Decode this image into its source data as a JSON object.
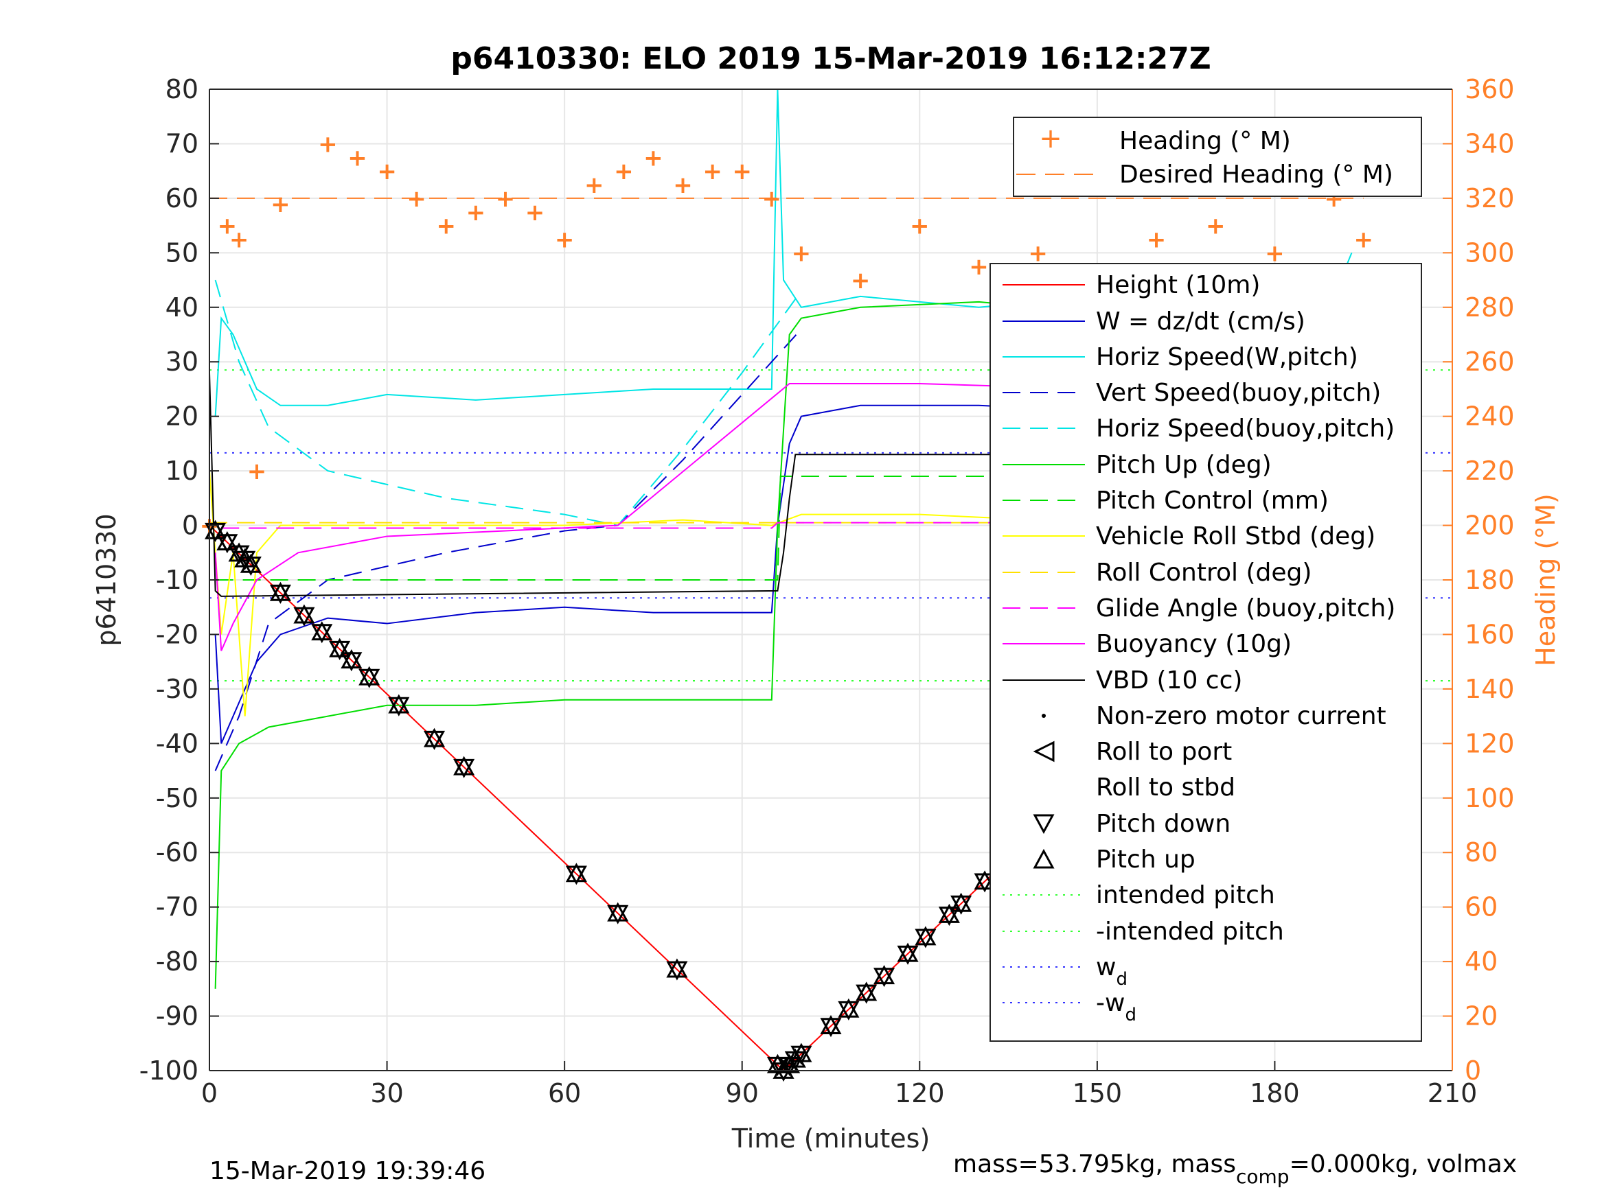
{
  "footer": {
    "timestamp": "15-Mar-2019 19:39:46",
    "mass_info_prefix": "mass=53.795kg, mass",
    "mass_info_sub": "comp",
    "mass_info_suffix": "=0.000kg, volmax"
  },
  "colors": {
    "height": "#ff0000",
    "w": "#0000cc",
    "horiz_w": "#00e5e5",
    "vert_buoy": "#0000cc",
    "horiz_buoy": "#00e5e5",
    "pitch_up": "#00dd00",
    "pitch_control": "#00dd00",
    "roll": "#ffff00",
    "roll_control": "#ffe000",
    "glide": "#ff00ff",
    "buoyancy": "#ff00ff",
    "vbd": "#000000",
    "heading": "#ff7f27",
    "intended": "#33ff33",
    "wd": "#3333ff"
  },
  "chart_data": {
    "type": "line",
    "title": "p6410330: ELO 2019 15-Mar-2019 16:12:27Z",
    "xlabel": "Time (minutes)",
    "ylabel": "p6410330",
    "ylabel_right": "Heading (°M)",
    "xlim": [
      0,
      210
    ],
    "ylim": [
      -100,
      80
    ],
    "ylim_right": [
      0,
      360
    ],
    "x_ticks": [
      0,
      30,
      60,
      90,
      120,
      150,
      180,
      210
    ],
    "y_ticks": [
      -100,
      -90,
      -80,
      -70,
      -60,
      -50,
      -40,
      -30,
      -20,
      -10,
      0,
      10,
      20,
      30,
      40,
      50,
      60,
      70,
      80
    ],
    "y_ticks_right": [
      0,
      20,
      40,
      60,
      80,
      100,
      120,
      140,
      160,
      180,
      200,
      220,
      240,
      260,
      280,
      300,
      320,
      340,
      360
    ],
    "grid": true,
    "legend_top": [
      "Heading (° M)",
      "Desired Heading (° M)"
    ],
    "legend_main": [
      "Height (10m)",
      "W = dz/dt (cm/s)",
      "Horiz Speed(W,pitch)",
      "Vert Speed(buoy,pitch)",
      "Horiz Speed(buoy,pitch)",
      "Pitch Up (deg)",
      "Pitch Control (mm)",
      "Vehicle Roll Stbd (deg)",
      "Roll Control (deg)",
      "Glide Angle (buoy,pitch)",
      "Buoyancy (10g)",
      "VBD (10 cc)",
      "Non-zero motor current",
      "Roll to port",
      "Roll to stbd",
      "Pitch down",
      "Pitch up",
      "intended pitch",
      "-intended pitch",
      "w",
      "-w"
    ],
    "legend_wd_sub": "d",
    "series": [
      {
        "key": "height",
        "x": [
          0,
          97,
          195
        ],
        "y": [
          0,
          -100,
          0
        ]
      },
      {
        "key": "w",
        "x": [
          1,
          2,
          4,
          8,
          12,
          20,
          30,
          45,
          60,
          75,
          95,
          96,
          98,
          100,
          110,
          130,
          150,
          170,
          190,
          193
        ],
        "y": [
          -20,
          -40,
          -35,
          -25,
          -20,
          -17,
          -18,
          -16,
          -15,
          -16,
          -16,
          0,
          15,
          20,
          22,
          22,
          21,
          18,
          13,
          25
        ]
      },
      {
        "key": "horiz_w",
        "x": [
          1,
          2,
          4,
          8,
          12,
          20,
          30,
          45,
          60,
          75,
          95,
          96,
          97,
          100,
          110,
          130,
          150,
          170,
          190,
          193
        ],
        "y": [
          20,
          38,
          35,
          25,
          22,
          22,
          24,
          23,
          24,
          25,
          25,
          80,
          45,
          40,
          42,
          40,
          42,
          38,
          42,
          50
        ]
      },
      {
        "key": "vert_buoy",
        "x": [
          1,
          5,
          10,
          20,
          40,
          60,
          69,
          80,
          90,
          100
        ],
        "y": [
          -45,
          -35,
          -18,
          -10,
          -5,
          -1,
          0,
          12,
          24,
          36
        ]
      },
      {
        "key": "horiz_buoy",
        "x": [
          1,
          5,
          10,
          20,
          40,
          60,
          69,
          80,
          90,
          100
        ],
        "y": [
          45,
          30,
          18,
          10,
          5,
          2,
          0,
          14,
          28,
          43
        ]
      },
      {
        "key": "pitch_up",
        "x": [
          1,
          2,
          5,
          10,
          20,
          30,
          45,
          60,
          75,
          95,
          96,
          98,
          100,
          110,
          130,
          150,
          170,
          190,
          193
        ],
        "y": [
          -85,
          -45,
          -40,
          -37,
          -35,
          -33,
          -33,
          -32,
          -32,
          -32,
          0,
          35,
          38,
          40,
          41,
          39,
          38,
          35,
          28
        ]
      },
      {
        "key": "pitch_control",
        "x": [
          1,
          96,
          96.5,
          193
        ],
        "y": [
          -10,
          -10,
          9,
          9
        ]
      },
      {
        "key": "roll",
        "x": [
          0,
          2,
          4,
          6,
          8,
          12,
          20,
          40,
          60,
          80,
          95,
          100,
          120,
          140,
          160,
          180,
          193
        ],
        "y": [
          10,
          -20,
          -5,
          -35,
          -5,
          0,
          0,
          0,
          0,
          1,
          0,
          2,
          2,
          1,
          0,
          0,
          0
        ]
      },
      {
        "key": "roll_control",
        "x": [
          0,
          193
        ],
        "y": [
          0.5,
          0.5
        ]
      },
      {
        "key": "glide",
        "x": [
          2,
          95,
          96,
          193
        ],
        "y": [
          -0.5,
          -0.5,
          0.5,
          0.5
        ]
      },
      {
        "key": "buoyancy",
        "x": [
          1,
          2,
          4,
          8,
          15,
          30,
          50,
          69,
          98,
          120,
          150,
          170,
          190,
          194
        ],
        "y": [
          -5,
          -23,
          -18,
          -10,
          -5,
          -2,
          -1,
          0,
          26,
          26,
          25,
          22,
          20,
          27
        ]
      },
      {
        "key": "vbd",
        "x": [
          0,
          1,
          2,
          96,
          97,
          98,
          99,
          160,
          185,
          190,
          193
        ],
        "y": [
          28,
          -12,
          -13,
          -12,
          -5,
          5,
          13,
          13,
          13,
          30,
          39
        ]
      },
      {
        "key": "heading",
        "x": [
          0,
          3,
          5,
          8,
          12,
          20,
          25,
          30,
          35,
          40,
          45,
          50,
          55,
          60,
          65,
          70,
          75,
          80,
          85,
          90,
          95,
          100,
          110,
          120,
          130,
          140,
          150,
          160,
          170,
          180,
          190,
          195
        ],
        "y": [
          200,
          310,
          305,
          220,
          318,
          340,
          335,
          330,
          320,
          310,
          315,
          320,
          315,
          305,
          325,
          330,
          335,
          325,
          330,
          330,
          320,
          300,
          290,
          310,
          295,
          300,
          285,
          305,
          310,
          300,
          320,
          305
        ]
      },
      {
        "key": "desired_heading",
        "x": [
          0,
          195
        ],
        "y": [
          320,
          320
        ]
      }
    ],
    "reference_lines": [
      {
        "key": "intended",
        "y": [
          28.5,
          -28.5
        ]
      },
      {
        "key": "wd",
        "y": [
          13.3,
          -13.3
        ]
      }
    ],
    "pitch_markers_x": [
      1,
      3,
      5,
      6,
      7,
      12,
      16,
      19,
      22,
      24,
      27,
      32,
      38,
      43,
      62,
      69,
      79,
      96,
      97,
      98,
      99,
      100,
      105,
      108,
      111,
      114,
      118,
      121,
      125,
      127,
      131,
      135,
      138,
      141,
      144,
      148,
      152,
      156,
      160,
      164,
      168,
      171,
      174,
      177,
      180,
      183,
      186,
      188,
      190,
      192,
      194
    ]
  }
}
